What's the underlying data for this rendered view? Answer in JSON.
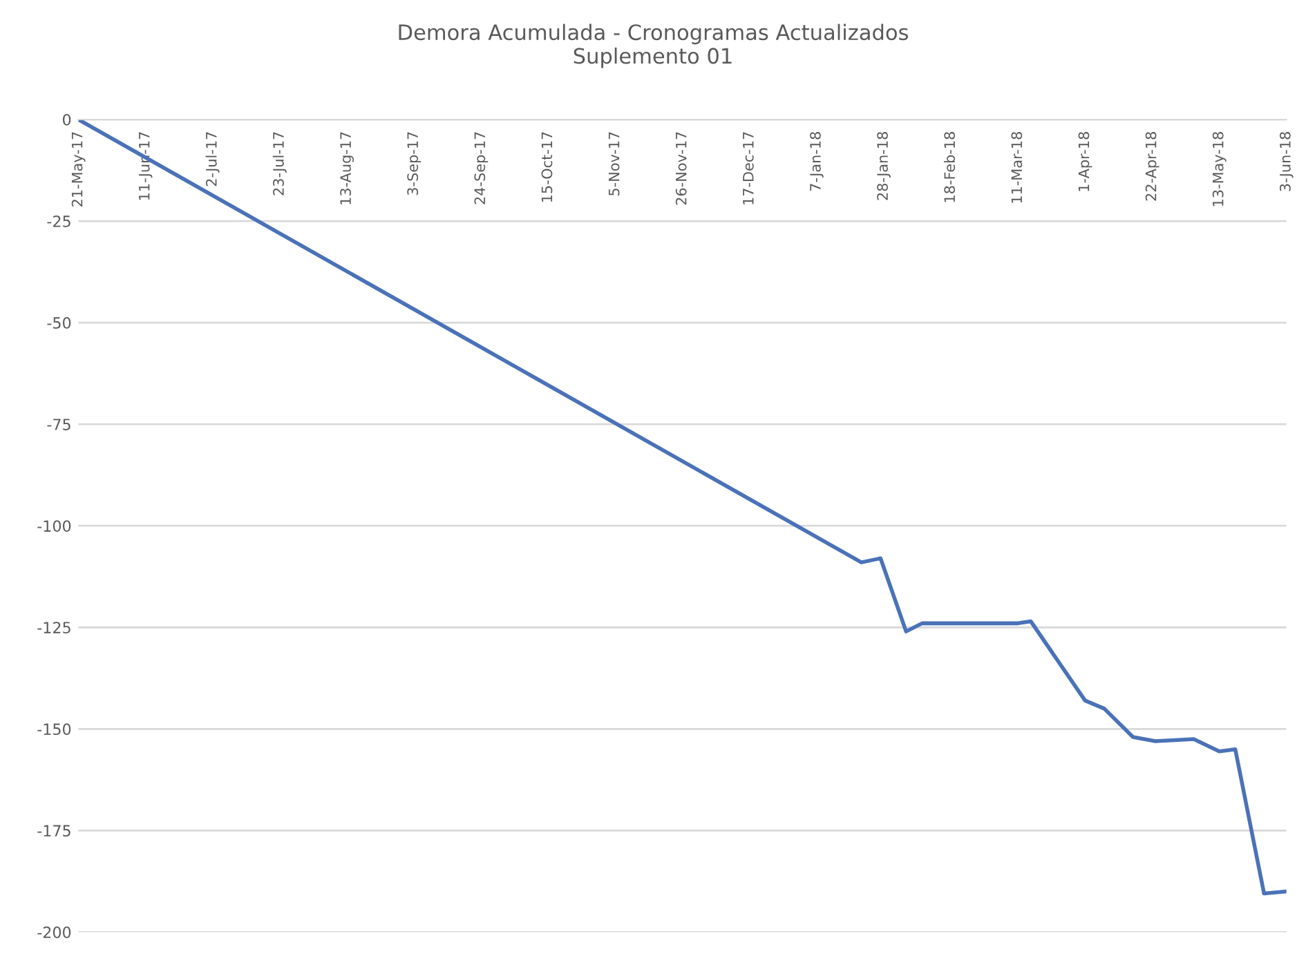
{
  "chart_data": {
    "type": "line",
    "title": "Demora Acumulada - Cronogramas Actualizados\nSuplemento 01",
    "x": [
      "2017-05-21",
      "2018-01-21",
      "2018-01-27",
      "2018-02-04",
      "2018-02-09",
      "2018-03-11",
      "2018-03-15",
      "2018-04-01",
      "2018-04-07",
      "2018-04-16",
      "2018-04-23",
      "2018-05-05",
      "2018-05-13",
      "2018-05-18",
      "2018-05-27",
      "2018-06-03"
    ],
    "series": [
      {
        "color": "#4a72b8",
        "values": [
          0,
          -109,
          -108,
          -126,
          -124,
          -124,
          -123.5,
          -143,
          -145,
          -152,
          -153,
          -152.5,
          -155.5,
          -155,
          -190.5,
          -190
        ]
      }
    ],
    "xlim": [
      "2017-05-21",
      "2018-06-03"
    ],
    "xticks": [
      {
        "value": "2017-05-21",
        "label": "21-May-17"
      },
      {
        "value": "2017-06-11",
        "label": "11-Jun-17"
      },
      {
        "value": "2017-07-02",
        "label": "2-Jul-17"
      },
      {
        "value": "2017-07-23",
        "label": "23-Jul-17"
      },
      {
        "value": "2017-08-13",
        "label": "13-Aug-17"
      },
      {
        "value": "2017-09-03",
        "label": "3-Sep-17"
      },
      {
        "value": "2017-09-24",
        "label": "24-Sep-17"
      },
      {
        "value": "2017-10-15",
        "label": "15-Oct-17"
      },
      {
        "value": "2017-11-05",
        "label": "5-Nov-17"
      },
      {
        "value": "2017-11-26",
        "label": "26-Nov-17"
      },
      {
        "value": "2017-12-17",
        "label": "17-Dec-17"
      },
      {
        "value": "2018-01-07",
        "label": "7-Jan-18"
      },
      {
        "value": "2018-01-28",
        "label": "28-Jan-18"
      },
      {
        "value": "2018-02-18",
        "label": "18-Feb-18"
      },
      {
        "value": "2018-03-11",
        "label": "11-Mar-18"
      },
      {
        "value": "2018-04-01",
        "label": "1-Apr-18"
      },
      {
        "value": "2018-04-22",
        "label": "22-Apr-18"
      },
      {
        "value": "2018-05-13",
        "label": "13-May-18"
      },
      {
        "value": "2018-06-03",
        "label": "3-Jun-18"
      }
    ],
    "ylim": [
      -200,
      0
    ],
    "yticks": [
      0,
      -25,
      -50,
      -75,
      -100,
      -125,
      -150,
      -175,
      -200
    ],
    "grid": "y",
    "legend": false,
    "marker": "none",
    "line_style": "solid"
  }
}
